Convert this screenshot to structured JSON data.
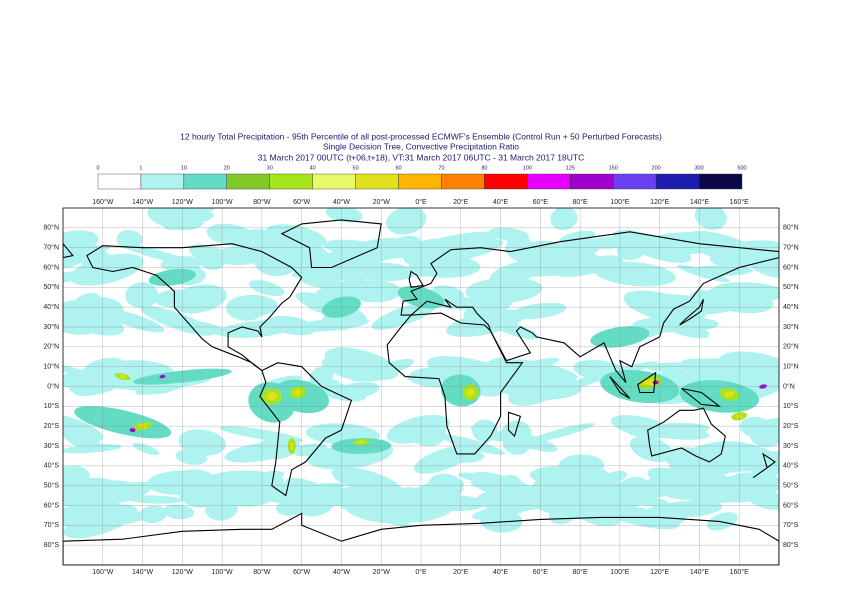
{
  "title_lines": [
    "12 hourly Total Precipitation - 95th Percentile of all post-processed ECMWF's Ensemble (Control Run + 50 Perturbed Forecasts)",
    "Single Decision Tree, Convective Precipitation Ratio",
    "31 March 2017 00UTC (t+06,t+18), VT:31 March 2017 06UTC - 31 March 2017 18UTC"
  ],
  "legend": {
    "levels": [
      0,
      1,
      10,
      20,
      30,
      40,
      50,
      60,
      70,
      80,
      100,
      125,
      150,
      200,
      300,
      500
    ],
    "colors": [
      "#ffffff",
      "#aef3f0",
      "#64dcc4",
      "#84c828",
      "#a6e41e",
      "#e8fa6a",
      "#e0e01c",
      "#ffb400",
      "#ff7f00",
      "#ff0000",
      "#e600ff",
      "#a000d0",
      "#6a40f0",
      "#1c1cb0",
      "#0a0a4a"
    ]
  },
  "axes": {
    "longitudes": [
      "160°W",
      "140°W",
      "120°W",
      "100°W",
      "80°W",
      "60°W",
      "40°W",
      "20°W",
      "0°E",
      "20°E",
      "40°E",
      "60°E",
      "80°E",
      "100°E",
      "120°E",
      "140°E",
      "160°E"
    ],
    "latitudes": [
      "80°N",
      "70°N",
      "60°N",
      "50°N",
      "40°N",
      "30°N",
      "20°N",
      "10°N",
      "0°N",
      "10°S",
      "20°S",
      "30°S",
      "40°S",
      "50°S",
      "60°S",
      "70°S",
      "80°S"
    ]
  }
}
